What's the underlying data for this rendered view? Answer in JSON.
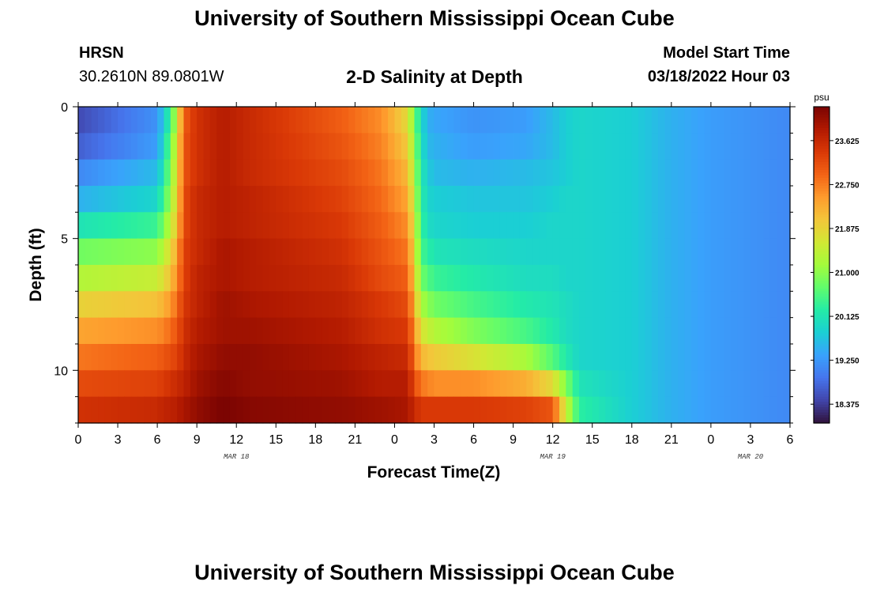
{
  "page": {
    "title": "University of Southern Mississippi Ocean Cube",
    "bottom_title": "University of Southern Mississippi Ocean Cube",
    "station": "HRSN",
    "coords": "30.2610N  89.0801W",
    "subtitle": "2-D Salinity at Depth",
    "start_label": "Model Start Time",
    "start_value": "03/18/2022 Hour 03"
  },
  "chart_data": {
    "type": "heatmap",
    "title": "2-D Salinity at Depth",
    "xlabel": "Forecast Time(Z)",
    "ylabel": "Depth (ft)",
    "x_range_hours": [
      0,
      54
    ],
    "y_range_ft": [
      0,
      12
    ],
    "x_ticks": [
      "0",
      "3",
      "6",
      "9",
      "12",
      "15",
      "18",
      "21",
      "0",
      "3",
      "6",
      "9",
      "12",
      "15",
      "18",
      "21",
      "0",
      "3",
      "6"
    ],
    "y_ticks": [
      "0",
      "5",
      "10"
    ],
    "y_tick_values": [
      0,
      5,
      10
    ],
    "date_labels": [
      {
        "text": "MAR 18",
        "hour": 12
      },
      {
        "text": "MAR 19",
        "hour": 36
      },
      {
        "text": "MAR 20",
        "hour": 51
      }
    ],
    "colorbar": {
      "unit": "psu",
      "min": 18.0,
      "max": 24.3,
      "ticks": [
        "23.625",
        "22.750",
        "21.875",
        "21.000",
        "20.125",
        "19.250",
        "18.375"
      ],
      "tick_values": [
        23.625,
        22.75,
        21.875,
        21.0,
        20.125,
        19.25,
        18.375
      ],
      "colors": [
        "#30123b",
        "#4145ab",
        "#4675ed",
        "#39a2fc",
        "#1bcfd4",
        "#24eca6",
        "#61fc6c",
        "#a4fc3b",
        "#d1e834",
        "#f3c63a",
        "#fe9b2d",
        "#f36315",
        "#d93806",
        "#b11901",
        "#7a0402"
      ]
    },
    "grid": {
      "depth_rows_ft": [
        0.5,
        1.5,
        2.5,
        3.5,
        4.5,
        5.5,
        6.5,
        7.5,
        8.5,
        9.5,
        10.5,
        11.5
      ],
      "hours": [
        0,
        6,
        6.5,
        7,
        7.5,
        8,
        9,
        11,
        13,
        20,
        23,
        25,
        25.5,
        26,
        26.5,
        27,
        30,
        34,
        36,
        37,
        38,
        42,
        45,
        48,
        54
      ],
      "salinity_psu": [
        [
          18.5,
          19.2,
          19.8,
          20.4,
          21.5,
          23.0,
          23.5,
          23.8,
          23.6,
          23.0,
          22.6,
          21.8,
          20.8,
          20.0,
          19.5,
          19.4,
          19.2,
          19.3,
          19.6,
          19.8,
          19.9,
          19.8,
          19.5,
          19.3,
          19.1
        ],
        [
          18.7,
          19.3,
          20.0,
          20.7,
          21.7,
          23.1,
          23.5,
          23.8,
          23.6,
          23.1,
          22.7,
          22.0,
          21.0,
          20.1,
          19.6,
          19.5,
          19.3,
          19.4,
          19.6,
          19.8,
          19.9,
          19.8,
          19.5,
          19.3,
          19.1
        ],
        [
          19.1,
          19.6,
          20.2,
          20.9,
          21.8,
          23.1,
          23.5,
          23.8,
          23.6,
          23.2,
          22.8,
          22.2,
          21.2,
          20.2,
          19.8,
          19.6,
          19.5,
          19.6,
          19.7,
          19.8,
          19.9,
          19.8,
          19.5,
          19.3,
          19.1
        ],
        [
          19.5,
          19.9,
          20.5,
          21.1,
          21.9,
          23.2,
          23.6,
          23.8,
          23.7,
          23.3,
          22.9,
          22.4,
          21.4,
          20.3,
          19.9,
          19.8,
          19.7,
          19.7,
          19.8,
          19.9,
          19.9,
          19.8,
          19.5,
          19.3,
          19.1
        ],
        [
          20.1,
          20.4,
          20.9,
          21.4,
          22.1,
          23.2,
          23.6,
          23.8,
          23.7,
          23.4,
          23.0,
          22.6,
          21.6,
          20.4,
          20.0,
          19.9,
          19.8,
          19.8,
          19.9,
          19.9,
          19.9,
          19.8,
          19.5,
          19.3,
          19.1
        ],
        [
          20.8,
          21.0,
          21.4,
          21.8,
          22.4,
          23.3,
          23.6,
          23.9,
          23.8,
          23.5,
          23.1,
          22.8,
          21.8,
          20.5,
          20.3,
          20.1,
          20.0,
          19.9,
          19.9,
          19.9,
          19.9,
          19.8,
          19.5,
          19.3,
          19.1
        ],
        [
          21.3,
          21.5,
          21.8,
          22.1,
          22.6,
          23.3,
          23.7,
          23.9,
          23.8,
          23.6,
          23.2,
          23.0,
          22.0,
          20.8,
          20.6,
          20.4,
          20.2,
          20.0,
          20.0,
          19.9,
          19.9,
          19.8,
          19.5,
          19.3,
          19.1
        ],
        [
          21.9,
          22.1,
          22.3,
          22.5,
          22.9,
          23.4,
          23.7,
          24.0,
          23.9,
          23.7,
          23.4,
          23.2,
          22.3,
          21.2,
          21.0,
          20.8,
          20.5,
          20.2,
          20.1,
          20.0,
          19.9,
          19.8,
          19.5,
          19.3,
          19.1
        ],
        [
          22.4,
          22.6,
          22.7,
          22.9,
          23.1,
          23.5,
          23.8,
          24.0,
          24.0,
          23.8,
          23.5,
          23.4,
          22.6,
          21.7,
          21.5,
          21.3,
          20.9,
          20.5,
          20.2,
          20.0,
          19.9,
          19.8,
          19.5,
          19.3,
          19.1
        ],
        [
          22.8,
          23.0,
          23.1,
          23.2,
          23.3,
          23.6,
          23.9,
          24.1,
          24.1,
          23.9,
          23.7,
          23.6,
          22.9,
          22.2,
          22.1,
          22.0,
          21.7,
          21.2,
          20.6,
          20.2,
          19.9,
          19.8,
          19.5,
          19.3,
          19.1
        ],
        [
          23.2,
          23.3,
          23.4,
          23.5,
          23.6,
          23.7,
          24.0,
          24.2,
          24.1,
          24.0,
          23.8,
          23.8,
          23.2,
          22.8,
          22.7,
          22.6,
          22.6,
          22.3,
          21.8,
          20.9,
          20.1,
          19.8,
          19.5,
          19.3,
          19.1
        ],
        [
          23.5,
          23.6,
          23.7,
          23.7,
          23.8,
          23.9,
          24.1,
          24.3,
          24.2,
          24.1,
          24.0,
          23.9,
          23.6,
          23.4,
          23.4,
          23.4,
          23.4,
          23.3,
          23.1,
          21.5,
          20.3,
          19.8,
          19.5,
          19.3,
          19.1
        ]
      ]
    }
  }
}
